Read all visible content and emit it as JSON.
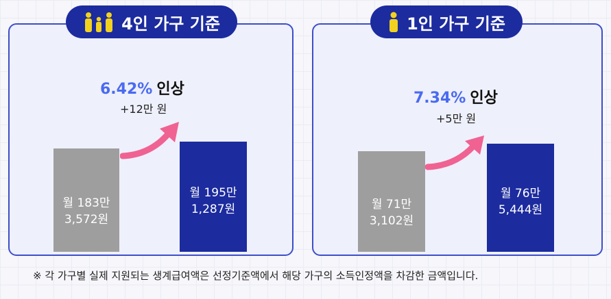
{
  "colors": {
    "accent_blue": "#1c2b9e",
    "percent_blue": "#4a6af0",
    "arrow_pink": "#f06292",
    "bar_gray": "#9e9e9e",
    "icon_yellow": "#f2d21e"
  },
  "icons": {
    "family": "family-icon",
    "single": "person-icon"
  },
  "panels": [
    {
      "title": "4인 가구 기준",
      "percent": "6.42%",
      "percent_word": "인상",
      "amount": "+12만 원",
      "before": {
        "line1": "월 183만",
        "line2": "3,572원"
      },
      "after": {
        "line1": "월 195만",
        "line2": "1,287원"
      }
    },
    {
      "title": "1인 가구 기준",
      "percent": "7.34%",
      "percent_word": "인상",
      "amount": "+5만 원",
      "before": {
        "line1": "월 71만",
        "line2": "3,102원"
      },
      "after": {
        "line1": "월 76만",
        "line2": "5,444원"
      }
    }
  ],
  "footnote": "※ 각 가구별 실제 지원되는 생계급여액은 선정기준액에서 해당 가구의 소득인정액을 차감한 금액입니다.",
  "chart_data": [
    {
      "type": "bar",
      "categories": [
        "before",
        "after"
      ],
      "values": [
        1833572,
        1951287
      ],
      "unit": "원/월",
      "title": "4인 가구 기준",
      "annotation": "6.42% 인상 +12만 원"
    },
    {
      "type": "bar",
      "categories": [
        "before",
        "after"
      ],
      "values": [
        713102,
        765444
      ],
      "unit": "원/월",
      "title": "1인 가구 기준",
      "annotation": "7.34% 인상 +5만 원"
    }
  ]
}
